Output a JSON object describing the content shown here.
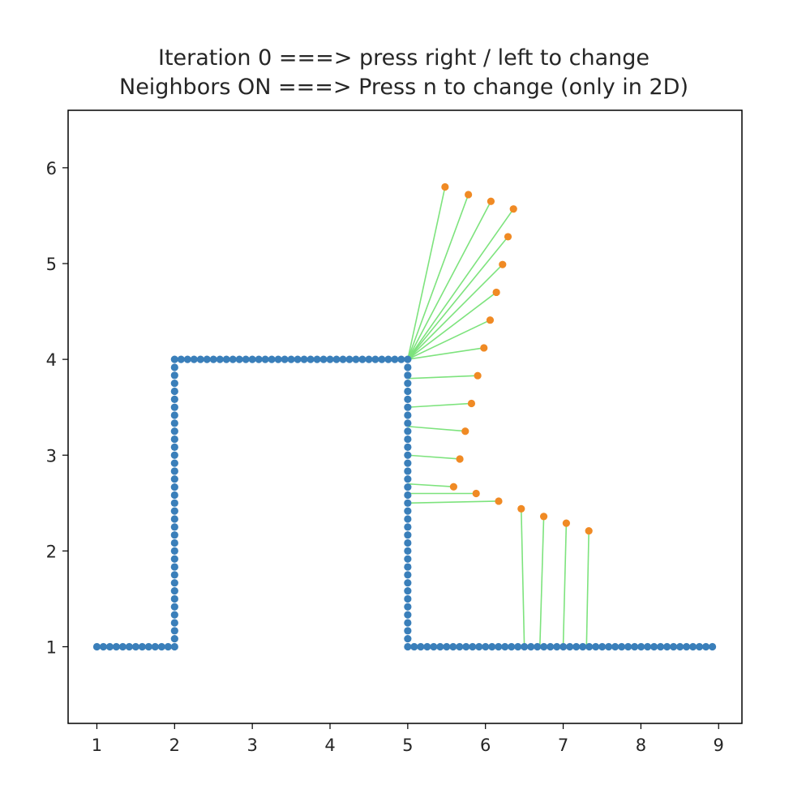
{
  "chart_data": {
    "type": "scatter",
    "title_lines": [
      "Iteration 0 ===> press right / left to change",
      "Neighbors ON ===> Press n to change (only in 2D)"
    ],
    "xlabel": "",
    "ylabel": "",
    "xlim": [
      0.63,
      9.3
    ],
    "ylim": [
      0.2,
      6.6
    ],
    "xticks": [
      1,
      2,
      3,
      4,
      5,
      6,
      7,
      8,
      9
    ],
    "yticks": [
      1,
      2,
      3,
      4,
      5,
      6
    ],
    "grid": false,
    "legend": "none",
    "colors": {
      "blue": "#3a7fba",
      "orange": "#f08a24",
      "green": "#7de37d"
    },
    "domain_polyline": [
      [
        1,
        1
      ],
      [
        2,
        1
      ],
      [
        2,
        4
      ],
      [
        5,
        4
      ],
      [
        5,
        1
      ],
      [
        8.92,
        1
      ]
    ],
    "domain_point_spacing": 0.084,
    "neighbors": [
      {
        "from": [
          5,
          4
        ],
        "to": [
          5.48,
          5.8
        ]
      },
      {
        "from": [
          5,
          4
        ],
        "to": [
          5.78,
          5.72
        ]
      },
      {
        "from": [
          5,
          4
        ],
        "to": [
          6.07,
          5.65
        ]
      },
      {
        "from": [
          5,
          4
        ],
        "to": [
          6.36,
          5.57
        ]
      },
      {
        "from": [
          5,
          4
        ],
        "to": [
          6.29,
          5.28
        ]
      },
      {
        "from": [
          5,
          4
        ],
        "to": [
          6.22,
          4.99
        ]
      },
      {
        "from": [
          5,
          4
        ],
        "to": [
          6.14,
          4.7
        ]
      },
      {
        "from": [
          5,
          4
        ],
        "to": [
          6.06,
          4.41
        ]
      },
      {
        "from": [
          5,
          4
        ],
        "to": [
          5.98,
          4.12
        ]
      },
      {
        "from": [
          5,
          3.8
        ],
        "to": [
          5.9,
          3.83
        ]
      },
      {
        "from": [
          5,
          3.5
        ],
        "to": [
          5.82,
          3.54
        ]
      },
      {
        "from": [
          5,
          3.3
        ],
        "to": [
          5.74,
          3.25
        ]
      },
      {
        "from": [
          5,
          3.0
        ],
        "to": [
          5.67,
          2.96
        ]
      },
      {
        "from": [
          5,
          2.7
        ],
        "to": [
          5.59,
          2.67
        ]
      },
      {
        "from": [
          5,
          2.6
        ],
        "to": [
          5.88,
          2.6
        ]
      },
      {
        "from": [
          5,
          2.5
        ],
        "to": [
          6.17,
          2.52
        ]
      },
      {
        "from": [
          6.5,
          1
        ],
        "to": [
          6.46,
          2.44
        ]
      },
      {
        "from": [
          6.7,
          1
        ],
        "to": [
          6.75,
          2.36
        ]
      },
      {
        "from": [
          7.0,
          1
        ],
        "to": [
          7.04,
          2.29
        ]
      },
      {
        "from": [
          7.3,
          1
        ],
        "to": [
          7.33,
          2.21
        ]
      }
    ]
  }
}
